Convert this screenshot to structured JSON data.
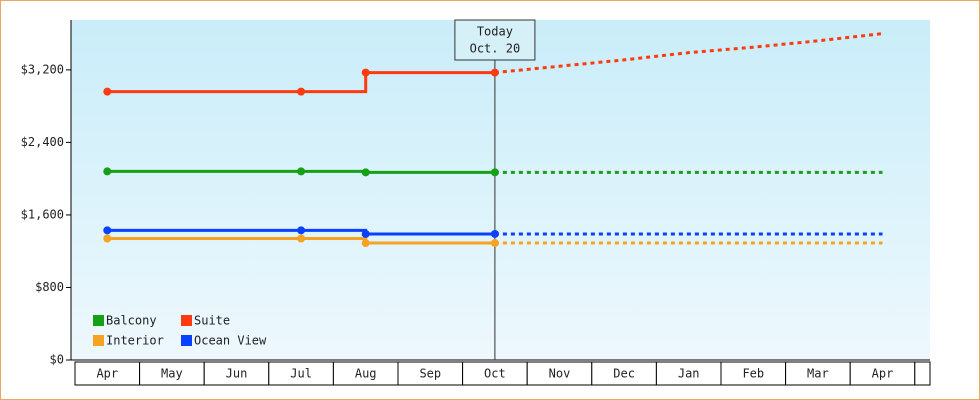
{
  "chart_data": {
    "type": "line",
    "categories": [
      "Apr",
      "May",
      "Jun",
      "Jul",
      "Aug",
      "Sep",
      "Oct",
      "Nov",
      "Dec",
      "Jan",
      "Feb",
      "Mar",
      "Apr"
    ],
    "ylim": [
      0,
      3750
    ],
    "yticks": [
      {
        "value": 0,
        "label": "$0"
      },
      {
        "value": 800,
        "label": "$800"
      },
      {
        "value": 1600,
        "label": "$1,600"
      },
      {
        "value": 2400,
        "label": "$2,400"
      },
      {
        "value": 3200,
        "label": "$3,200"
      }
    ],
    "annotation": [
      "Today",
      "Oct. 20"
    ],
    "legend": "lower left",
    "series": [
      {
        "name": "Balcony",
        "color": "#15a015",
        "values": [
          2080,
          2080,
          2080,
          2080,
          2070,
          2070,
          2070,
          null,
          null,
          null,
          null,
          null,
          null
        ],
        "forecast": [
          null,
          null,
          null,
          null,
          null,
          null,
          2070,
          2070,
          2070,
          2070,
          2070,
          2070,
          2070
        ]
      },
      {
        "name": "Suite",
        "color": "#ff3a10",
        "values": [
          2960,
          2960,
          2960,
          2960,
          3170,
          3170,
          3170,
          null,
          null,
          null,
          null,
          null,
          null
        ],
        "forecast": [
          null,
          null,
          null,
          null,
          null,
          null,
          3170,
          3240,
          3310,
          3390,
          3450,
          3520,
          3600
        ]
      },
      {
        "name": "Interior",
        "color": "#f5a320",
        "values": [
          1340,
          1340,
          1340,
          1340,
          1290,
          1290,
          1290,
          null,
          null,
          null,
          null,
          null,
          null
        ],
        "forecast": [
          null,
          null,
          null,
          null,
          null,
          null,
          1290,
          1290,
          1290,
          1290,
          1290,
          1290,
          1290
        ]
      },
      {
        "name": "Ocean View",
        "color": "#0a40ff",
        "values": [
          1430,
          1430,
          1430,
          1430,
          1390,
          1390,
          1390,
          null,
          null,
          null,
          null,
          null,
          null
        ],
        "forecast": [
          null,
          null,
          null,
          null,
          null,
          null,
          1390,
          1390,
          1390,
          1390,
          1390,
          1390,
          1390
        ]
      }
    ]
  }
}
